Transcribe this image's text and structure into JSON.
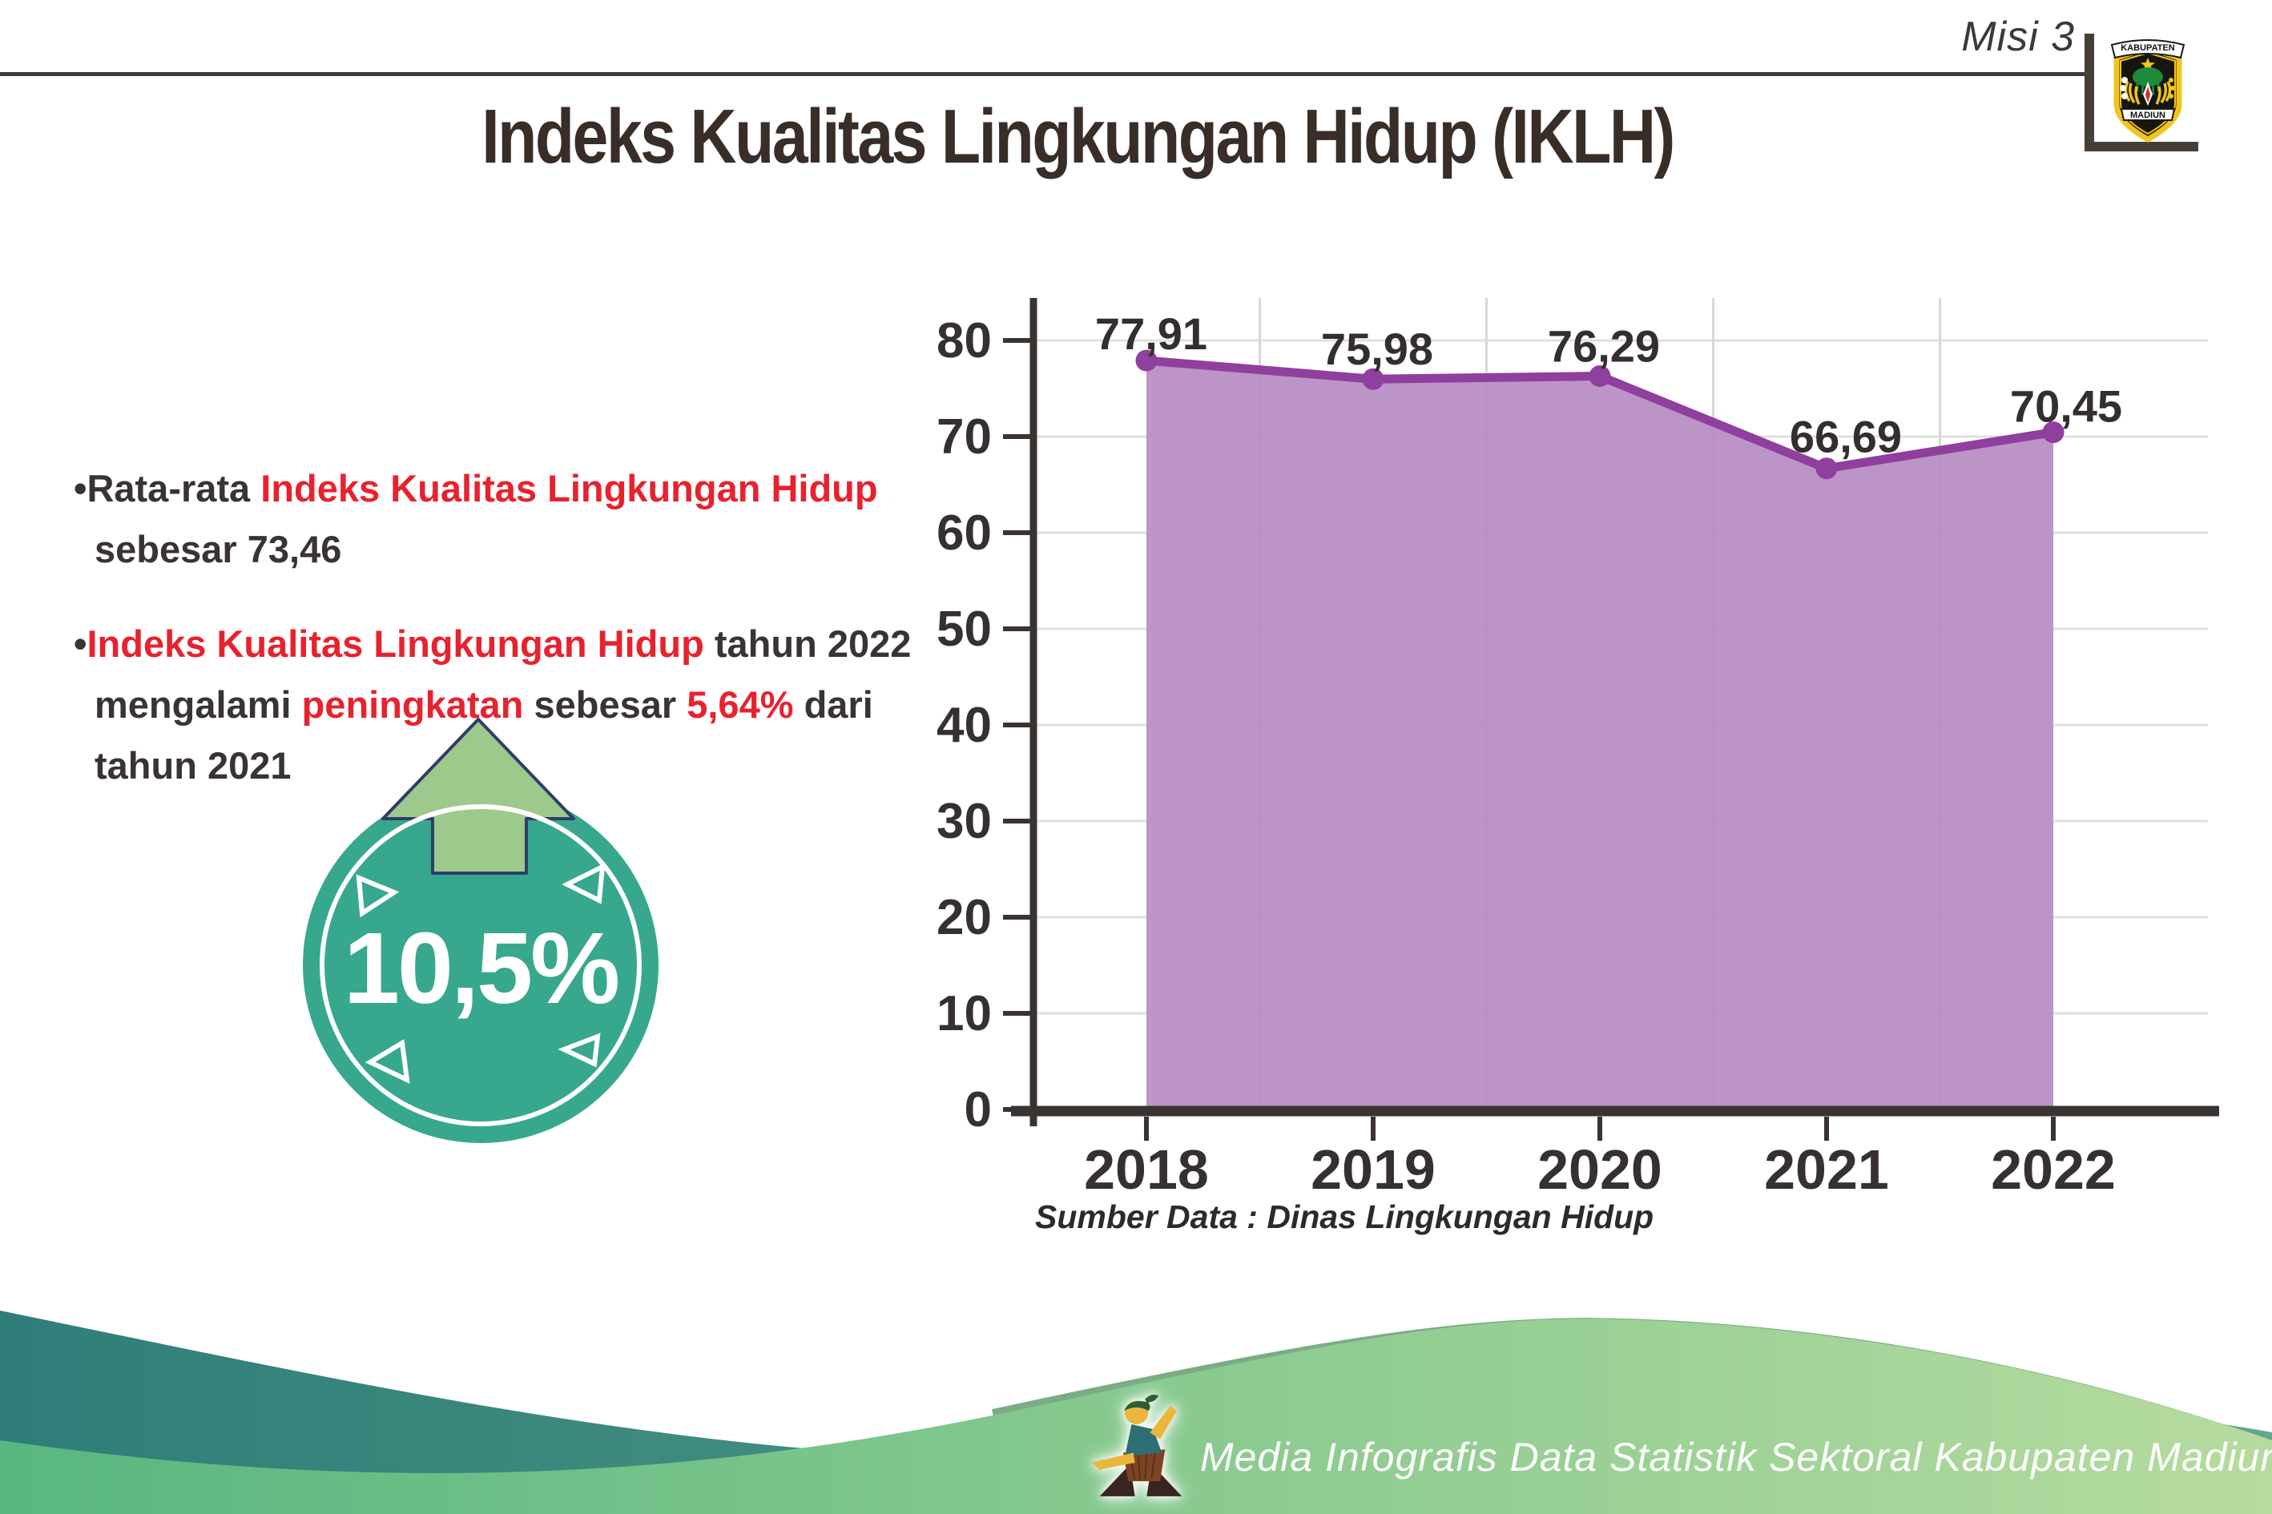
{
  "header": {
    "misi_label": "Misi 3",
    "title": "Indeks Kualitas Lingkungan Hidup (IKLH)",
    "logo": {
      "top_text": "KABUPATEN",
      "bottom_text": "MADIUN"
    }
  },
  "bullets": [
    {
      "lines": [
        [
          {
            "t": "•Rata-rata ",
            "c": "dark"
          },
          {
            "t": "Indeks Kualitas Lingkungan Hidup",
            "c": "red"
          }
        ],
        [
          {
            "t": "sebesar 73,46",
            "c": "dark"
          }
        ]
      ]
    },
    {
      "lines": [
        [
          {
            "t": "•",
            "c": "dark"
          },
          {
            "t": "Indeks Kualitas Lingkungan Hidup",
            "c": "red"
          },
          {
            "t": " tahun 2022",
            "c": "dark"
          }
        ],
        [
          {
            "t": "mengalami ",
            "c": "dark"
          },
          {
            "t": "peningkatan",
            "c": "red"
          },
          {
            "t": " sebesar ",
            "c": "dark"
          },
          {
            "t": "5,64%",
            "c": "red"
          },
          {
            "t": " dari",
            "c": "dark"
          }
        ],
        [
          {
            "t": "tahun 2021",
            "c": "dark"
          }
        ]
      ]
    }
  ],
  "badge": {
    "value": "10,5%",
    "circle_color": "#37a88d",
    "arrow_color": "#9dc98c",
    "arrow_outline": "#2f3d6a"
  },
  "chart_data": {
    "type": "area",
    "title": "",
    "categories": [
      "2018",
      "2019",
      "2020",
      "2021",
      "2022"
    ],
    "values": [
      77.91,
      75.98,
      76.29,
      66.69,
      70.45
    ],
    "point_labels": [
      "77,91",
      "75,98",
      "76,29",
      "66,69",
      "70,45"
    ],
    "xlabel": "",
    "ylabel": "",
    "ylim": [
      0,
      80
    ],
    "ytick_step": 10,
    "grid": "on",
    "legend": "none",
    "source": "Sumber Data : Dinas Lingkungan Hidup",
    "colors": {
      "area": "#b78bc3",
      "line": "#8f3f9d",
      "marker": "#8f3f9d",
      "grid_h": "#e0e0e0",
      "grid_v": "#d8d8d8",
      "axis": "#3a3332",
      "tick_label": "#363031",
      "point_label": "#342e2e"
    }
  },
  "source_note": "Sumber Data : Dinas Lingkungan Hidup",
  "footer": {
    "caption": "Media Infografis Data Statistik Sektoral Kabupaten Madiun |",
    "wave_teal_from": "#2f7e79",
    "wave_teal_to": "#63a78d",
    "wave_green_from": "#58b77f",
    "wave_green_to": "#b6db9f",
    "wave_edge_band": "#7aac85"
  },
  "palette": {
    "text_dark": "#3a3334",
    "text_red": "#e7222e",
    "title_color": "#392d28",
    "header_line": "#3f3937"
  }
}
